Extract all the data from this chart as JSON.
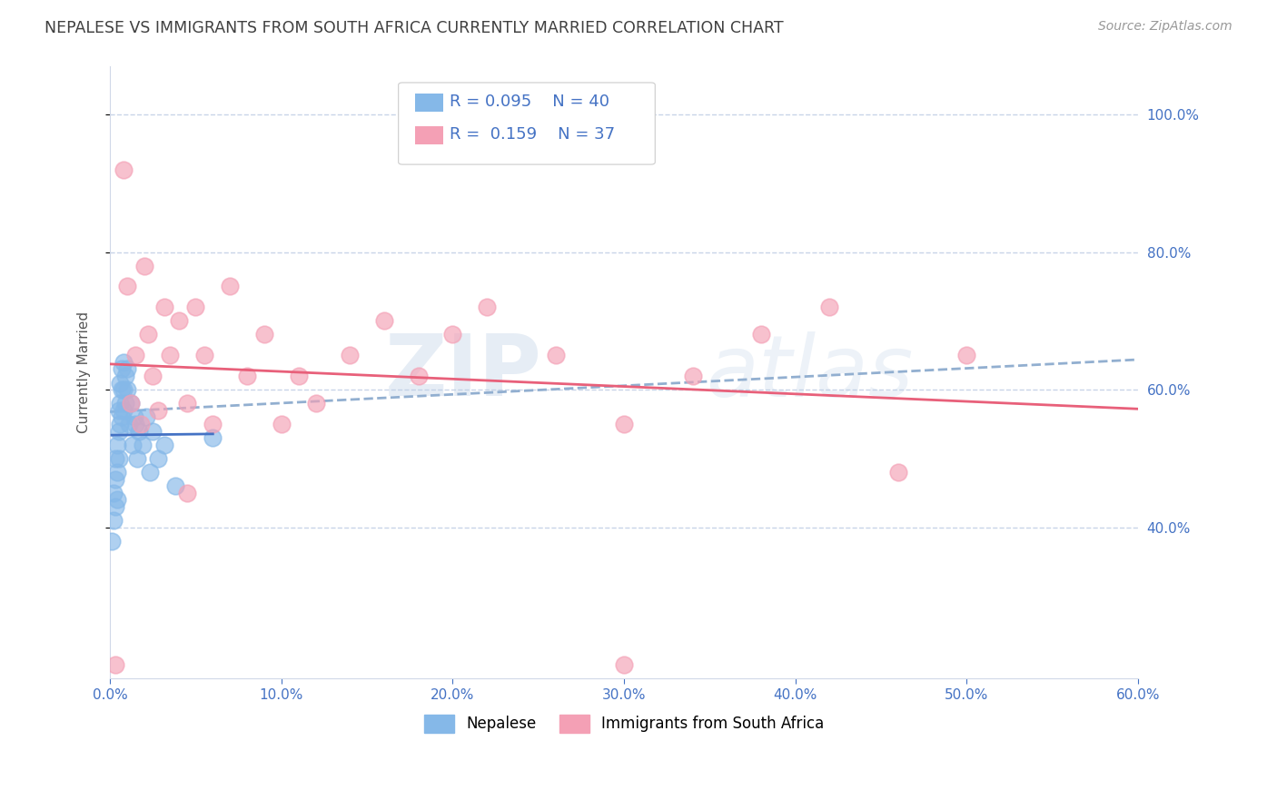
{
  "title": "NEPALESE VS IMMIGRANTS FROM SOUTH AFRICA CURRENTLY MARRIED CORRELATION CHART",
  "source_text": "Source: ZipAtlas.com",
  "ylabel": "Currently Married",
  "x_min": 0.0,
  "x_max": 0.6,
  "y_min": 0.18,
  "y_max": 1.07,
  "x_ticks": [
    0.0,
    0.1,
    0.2,
    0.3,
    0.4,
    0.5,
    0.6
  ],
  "x_tick_labels": [
    "0.0%",
    "10.0%",
    "20.0%",
    "30.0%",
    "40.0%",
    "50.0%",
    "60.0%"
  ],
  "y_ticks": [
    0.4,
    0.6,
    0.8,
    1.0
  ],
  "y_tick_labels": [
    "40.0%",
    "60.0%",
    "80.0%",
    "100.0%"
  ],
  "nepalese_color": "#85b8e8",
  "sa_color": "#f4a0b5",
  "nepalese_line_color": "#4472c4",
  "sa_line_color": "#e8607a",
  "dashed_line_color": "#92afd0",
  "R_nepalese": 0.095,
  "N_nepalese": 40,
  "R_sa": 0.159,
  "N_sa": 37,
  "watermark_zip": "ZIP",
  "watermark_atlas": "atlas",
  "title_color": "#404040",
  "axis_color": "#4472c4",
  "grid_color": "#c8d4e8",
  "nepalese_x": [
    0.001,
    0.002,
    0.002,
    0.003,
    0.003,
    0.003,
    0.004,
    0.004,
    0.004,
    0.005,
    0.005,
    0.005,
    0.006,
    0.006,
    0.006,
    0.007,
    0.007,
    0.007,
    0.008,
    0.008,
    0.008,
    0.009,
    0.009,
    0.01,
    0.01,
    0.011,
    0.012,
    0.013,
    0.014,
    0.015,
    0.016,
    0.017,
    0.019,
    0.021,
    0.023,
    0.025,
    0.028,
    0.032,
    0.038,
    0.06
  ],
  "nepalese_y": [
    0.38,
    0.41,
    0.45,
    0.43,
    0.47,
    0.5,
    0.44,
    0.48,
    0.52,
    0.5,
    0.54,
    0.57,
    0.55,
    0.58,
    0.61,
    0.56,
    0.6,
    0.63,
    0.57,
    0.6,
    0.64,
    0.58,
    0.62,
    0.6,
    0.63,
    0.55,
    0.58,
    0.52,
    0.56,
    0.55,
    0.5,
    0.54,
    0.52,
    0.56,
    0.48,
    0.54,
    0.5,
    0.52,
    0.46,
    0.53
  ],
  "sa_x": [
    0.003,
    0.008,
    0.01,
    0.012,
    0.015,
    0.018,
    0.02,
    0.022,
    0.025,
    0.028,
    0.032,
    0.035,
    0.04,
    0.045,
    0.05,
    0.055,
    0.06,
    0.07,
    0.08,
    0.09,
    0.1,
    0.11,
    0.12,
    0.14,
    0.16,
    0.18,
    0.2,
    0.22,
    0.26,
    0.3,
    0.34,
    0.38,
    0.42,
    0.46,
    0.5,
    0.045,
    0.3
  ],
  "sa_y": [
    0.2,
    0.92,
    0.75,
    0.58,
    0.65,
    0.55,
    0.78,
    0.68,
    0.62,
    0.57,
    0.72,
    0.65,
    0.7,
    0.58,
    0.72,
    0.65,
    0.55,
    0.75,
    0.62,
    0.68,
    0.55,
    0.62,
    0.58,
    0.65,
    0.7,
    0.62,
    0.68,
    0.72,
    0.65,
    0.55,
    0.62,
    0.68,
    0.72,
    0.48,
    0.65,
    0.45,
    0.2
  ]
}
